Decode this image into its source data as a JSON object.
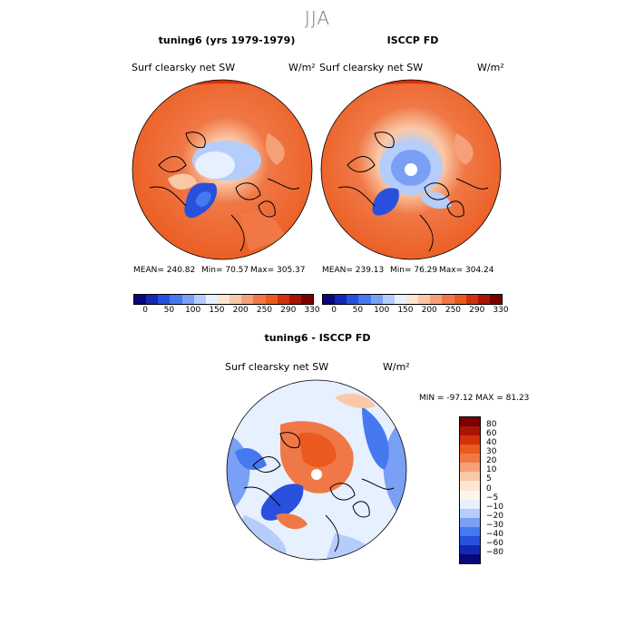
{
  "suptitle": "JJA",
  "panels": {
    "model": {
      "title": "tuning6 (yrs 1979-1979)",
      "variable": "Surf clearsky net SW",
      "units": "W/m²",
      "stats": {
        "mean": "MEAN= 240.82",
        "min": "Min= 70.57",
        "max": "Max= 305.37"
      }
    },
    "obs": {
      "title": "ISCCP FD",
      "variable": "Surf clearsky net SW",
      "units": "W/m²",
      "stats": {
        "mean": "MEAN= 239.13",
        "min": "Min= 76.29",
        "max": "Max= 304.24"
      }
    },
    "diff": {
      "title": "tuning6 - ISCCP FD",
      "variable": "Surf clearsky net SW",
      "units": "W/m²",
      "minmax": "MIN = -97.12 MAX = 81.23"
    }
  },
  "colorbar_abs": {
    "colors": [
      "#08087a",
      "#1428b4",
      "#2850dc",
      "#4678f0",
      "#7aa0f5",
      "#b4cdfa",
      "#e6f0ff",
      "#fde6d2",
      "#fac8a6",
      "#f5a078",
      "#f07846",
      "#eb5a1e",
      "#d2320a",
      "#aa1405",
      "#7a0000"
    ],
    "tick_labels": [
      "0",
      "50",
      "100",
      "150",
      "200",
      "250",
      "290",
      "330"
    ]
  },
  "colorbar_diff": {
    "colors": [
      "#7a0000",
      "#aa1405",
      "#d2320a",
      "#eb5a1e",
      "#f07846",
      "#f5a078",
      "#fac8a6",
      "#fde6d2",
      "#fff5ea",
      "#e6f0ff",
      "#b4cdfa",
      "#7aa0f5",
      "#4678f0",
      "#2850dc",
      "#1428b4",
      "#08087a"
    ],
    "tick_labels": [
      "80",
      "60",
      "40",
      "30",
      "20",
      "10",
      "5",
      "0",
      "−5",
      "−10",
      "−20",
      "−30",
      "−40",
      "−60",
      "−80"
    ]
  }
}
